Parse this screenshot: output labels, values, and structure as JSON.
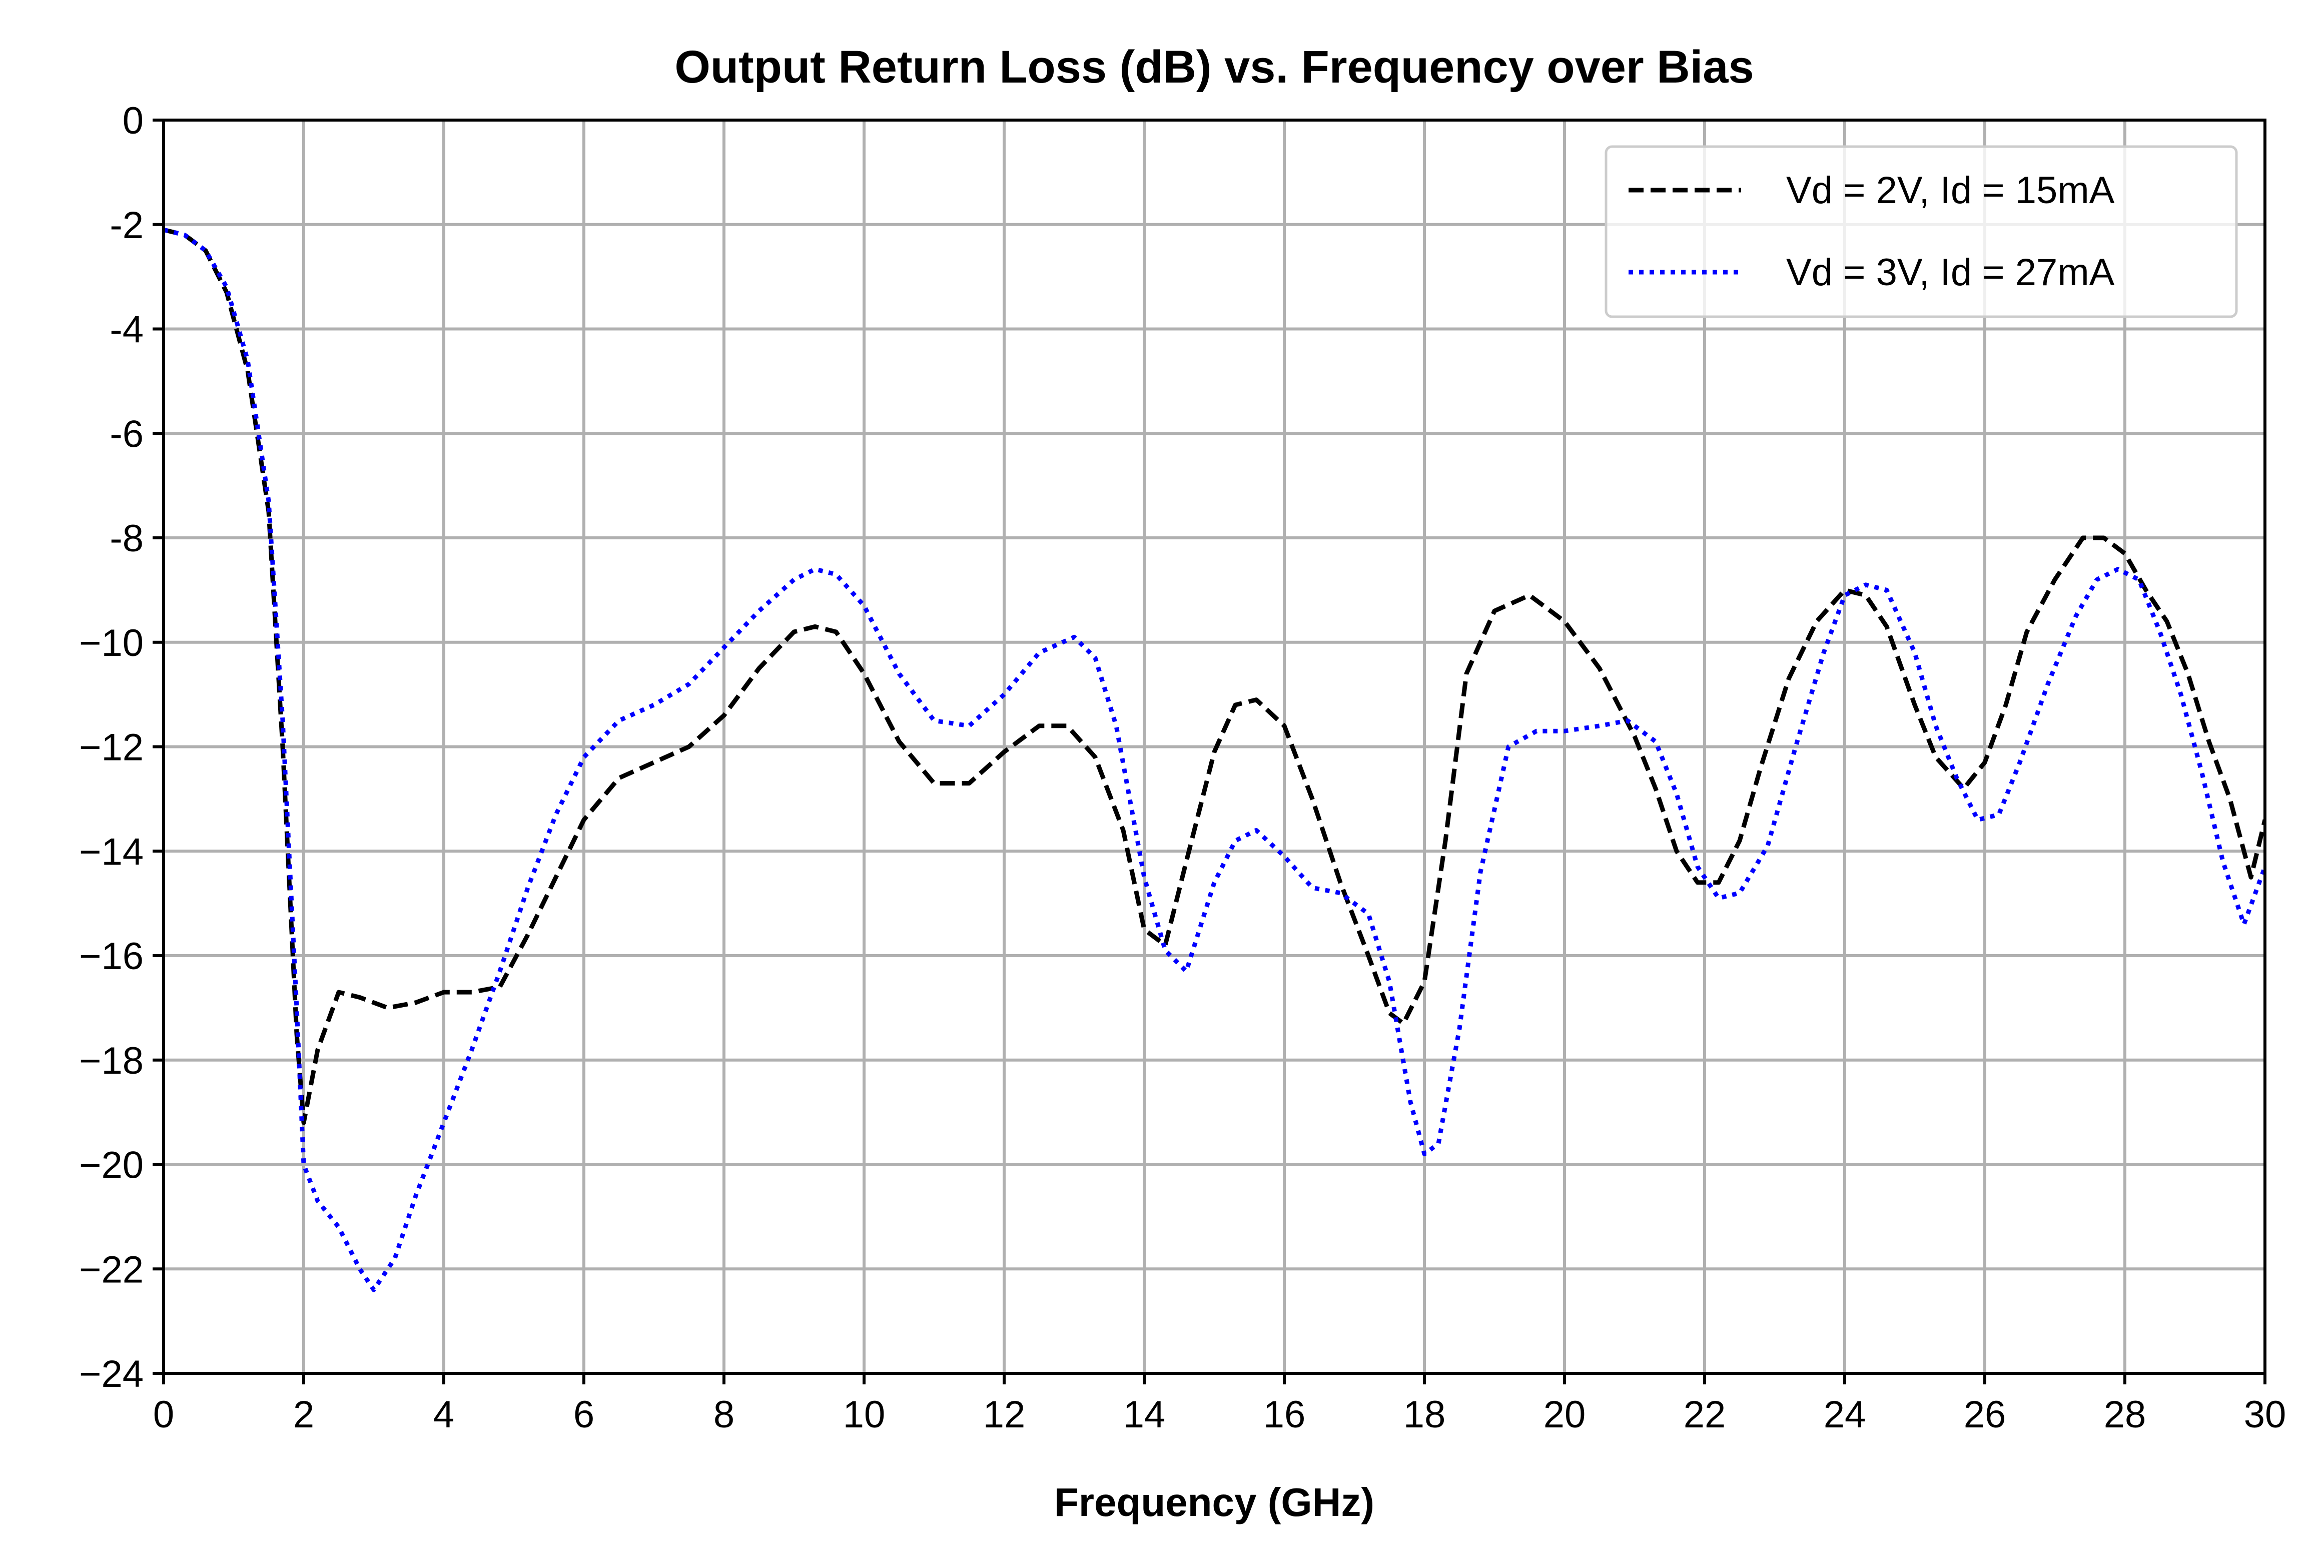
{
  "chart_data": {
    "type": "line",
    "title": "Output Return Loss (dB) vs. Frequency over Bias",
    "xlabel": "Frequency (GHz)",
    "ylabel": "",
    "xlim": [
      0,
      30
    ],
    "ylim": [
      -24,
      0
    ],
    "xticks": [
      0,
      2,
      4,
      6,
      8,
      10,
      12,
      14,
      16,
      18,
      20,
      22,
      24,
      26,
      28,
      30
    ],
    "xtick_labels": [
      "0",
      "2",
      "4",
      "6",
      "8",
      "10",
      "12",
      "14",
      "16",
      "18",
      "20",
      "22",
      "24",
      "26",
      "28",
      "30"
    ],
    "yticks": [
      0,
      -2,
      -4,
      -6,
      -8,
      -10,
      -12,
      -14,
      -16,
      -18,
      -20,
      -22,
      -24
    ],
    "ytick_labels": [
      "0",
      "-2",
      "-4",
      "-6",
      "-8",
      "−10",
      "−12",
      "−14",
      "−16",
      "−18",
      "−20",
      "−22",
      "−24"
    ],
    "grid": true,
    "legend_position": "top-right",
    "series": [
      {
        "name": "Vd = 2V, Id = 15mA",
        "color": "#000000",
        "style": "dashed",
        "x": [
          0,
          0.3,
          0.6,
          0.9,
          1.2,
          1.5,
          1.7,
          1.9,
          2.0,
          2.2,
          2.5,
          2.8,
          3.2,
          3.6,
          4.0,
          4.4,
          4.8,
          5.2,
          5.6,
          6.0,
          6.5,
          7.0,
          7.5,
          8.0,
          8.5,
          9.0,
          9.3,
          9.6,
          10.0,
          10.5,
          11.0,
          11.5,
          12.0,
          12.5,
          12.9,
          13.3,
          13.7,
          14.0,
          14.3,
          14.6,
          15.0,
          15.3,
          15.6,
          16.0,
          16.4,
          16.8,
          17.2,
          17.5,
          17.7,
          18.0,
          18.3,
          18.6,
          19.0,
          19.5,
          20.0,
          20.5,
          21.0,
          21.3,
          21.6,
          21.9,
          22.2,
          22.5,
          22.8,
          23.2,
          23.6,
          24.0,
          24.3,
          24.6,
          25.0,
          25.3,
          25.7,
          26.0,
          26.3,
          26.6,
          27.0,
          27.4,
          27.7,
          28.0,
          28.3,
          28.6,
          28.9,
          29.2,
          29.5,
          29.8,
          30.0
        ],
        "y": [
          -2.1,
          -2.2,
          -2.5,
          -3.3,
          -4.8,
          -7.5,
          -12.0,
          -17.5,
          -19.2,
          -17.8,
          -16.7,
          -16.8,
          -17.0,
          -16.9,
          -16.7,
          -16.7,
          -16.6,
          -15.6,
          -14.5,
          -13.4,
          -12.6,
          -12.3,
          -12.0,
          -11.4,
          -10.5,
          -9.8,
          -9.7,
          -9.8,
          -10.6,
          -11.9,
          -12.7,
          -12.7,
          -12.1,
          -11.6,
          -11.6,
          -12.2,
          -13.6,
          -15.5,
          -15.8,
          -14.2,
          -12.1,
          -11.2,
          -11.1,
          -11.6,
          -13.0,
          -14.6,
          -16.0,
          -17.1,
          -17.3,
          -16.5,
          -13.8,
          -10.6,
          -9.4,
          -9.1,
          -9.6,
          -10.5,
          -11.8,
          -12.8,
          -14.0,
          -14.6,
          -14.6,
          -13.8,
          -12.4,
          -10.7,
          -9.6,
          -9.0,
          -9.1,
          -9.7,
          -11.2,
          -12.2,
          -12.8,
          -12.3,
          -11.2,
          -9.8,
          -8.8,
          -8.0,
          -8.0,
          -8.3,
          -9.0,
          -9.6,
          -10.6,
          -11.9,
          -13.0,
          -14.5,
          -13.4
        ]
      },
      {
        "name": "Vd = 3V, Id = 27mA",
        "color": "#0000ff",
        "style": "dotted",
        "x": [
          0,
          0.3,
          0.6,
          0.9,
          1.2,
          1.5,
          1.7,
          1.9,
          2.0,
          2.2,
          2.5,
          2.8,
          3.0,
          3.3,
          3.6,
          4.0,
          4.4,
          4.8,
          5.2,
          5.6,
          6.0,
          6.5,
          7.0,
          7.5,
          8.0,
          8.5,
          9.0,
          9.3,
          9.6,
          10.0,
          10.5,
          11.0,
          11.5,
          12.0,
          12.5,
          13.0,
          13.3,
          13.6,
          14.0,
          14.3,
          14.6,
          15.0,
          15.3,
          15.6,
          16.0,
          16.4,
          16.8,
          17.2,
          17.5,
          17.8,
          18.0,
          18.2,
          18.5,
          18.8,
          19.2,
          19.6,
          20.0,
          20.5,
          20.9,
          21.3,
          21.6,
          21.9,
          22.2,
          22.5,
          22.9,
          23.3,
          23.7,
          24.0,
          24.3,
          24.6,
          25.0,
          25.3,
          25.6,
          25.9,
          26.2,
          26.5,
          26.9,
          27.3,
          27.6,
          27.9,
          28.2,
          28.5,
          28.8,
          29.1,
          29.4,
          29.7,
          30.0
        ],
        "y": [
          -2.1,
          -2.2,
          -2.5,
          -3.2,
          -4.6,
          -7.3,
          -11.5,
          -17.0,
          -20.0,
          -20.7,
          -21.2,
          -22.0,
          -22.4,
          -21.8,
          -20.6,
          -19.2,
          -17.8,
          -16.3,
          -14.7,
          -13.3,
          -12.2,
          -11.5,
          -11.2,
          -10.8,
          -10.1,
          -9.4,
          -8.8,
          -8.6,
          -8.7,
          -9.3,
          -10.6,
          -11.5,
          -11.6,
          -11.0,
          -10.2,
          -9.9,
          -10.3,
          -11.6,
          -14.5,
          -15.9,
          -16.3,
          -14.6,
          -13.8,
          -13.6,
          -14.1,
          -14.7,
          -14.8,
          -15.2,
          -16.5,
          -18.8,
          -19.8,
          -19.6,
          -17.4,
          -14.4,
          -12.0,
          -11.7,
          -11.7,
          -11.6,
          -11.5,
          -11.9,
          -12.9,
          -14.3,
          -14.9,
          -14.8,
          -13.9,
          -12.0,
          -10.2,
          -9.1,
          -8.9,
          -9.0,
          -10.2,
          -11.6,
          -12.6,
          -13.4,
          -13.3,
          -12.3,
          -10.8,
          -9.5,
          -8.8,
          -8.6,
          -8.8,
          -9.8,
          -11.0,
          -12.5,
          -14.2,
          -15.4,
          -14.3
        ]
      }
    ]
  }
}
